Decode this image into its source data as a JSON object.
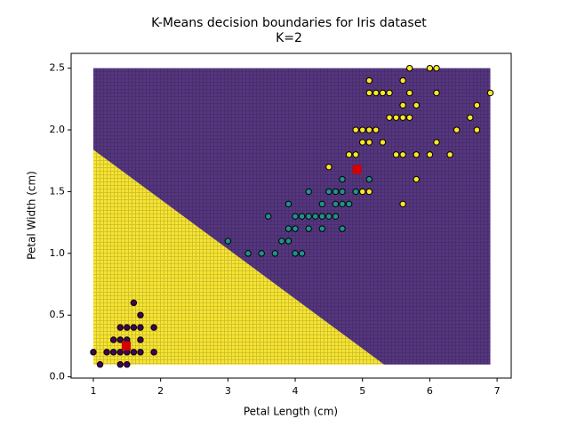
{
  "chart_data": {
    "type": "scatter",
    "title": "K-Means decision boundaries for Iris dataset",
    "subtitle": "K=2",
    "xlabel": "Petal Length (cm)",
    "ylabel": "Petal Width (cm)",
    "xlim": [
      0.67,
      7.21
    ],
    "ylim": [
      -0.01,
      2.62
    ],
    "xticks": [
      1,
      2,
      3,
      4,
      5,
      6,
      7
    ],
    "yticks": [
      {
        "value": 0,
        "label": "0.0"
      },
      0.5,
      {
        "value": 1,
        "label": "1.0"
      },
      1.5,
      {
        "value": 2,
        "label": "2.0"
      },
      2.5
    ],
    "regions": [
      {
        "color": "#f7e433",
        "x": [
          1,
          1,
          5.32
        ],
        "y": [
          0.1,
          1.84,
          0.1
        ]
      },
      {
        "color": "#55367f",
        "x": [
          1,
          5.32,
          6.9,
          6.9,
          1
        ],
        "y": [
          1.84,
          0.1,
          0.1,
          2.5,
          2.5
        ]
      }
    ],
    "series": [
      {
        "color": "#440154",
        "x": [
          1.0,
          1.1,
          1.2,
          1.3,
          1.3,
          1.4,
          1.4,
          1.4,
          1.4,
          1.5,
          1.5,
          1.5,
          1.5,
          1.6,
          1.6,
          1.6,
          1.7,
          1.7,
          1.7,
          1.7,
          1.9,
          1.9
        ],
        "y": [
          0.2,
          0.1,
          0.2,
          0.3,
          0.2,
          0.4,
          0.3,
          0.2,
          0.1,
          0.4,
          0.3,
          0.2,
          0.1,
          0.6,
          0.4,
          0.2,
          0.5,
          0.4,
          0.3,
          0.2,
          0.2,
          0.4
        ]
      },
      {
        "color": "#21918c",
        "x": [
          3.0,
          3.3,
          3.5,
          3.6,
          3.7,
          3.8,
          3.9,
          3.9,
          3.9,
          4.0,
          4.0,
          4.0,
          4.1,
          4.1,
          4.2,
          4.2,
          4.2,
          4.3,
          4.4,
          4.4,
          4.4,
          4.5,
          4.5,
          4.6,
          4.6,
          4.6,
          4.7,
          4.7,
          4.7,
          4.7,
          4.8,
          4.9,
          5.1
        ],
        "y": [
          1.1,
          1.0,
          1.0,
          1.3,
          1.0,
          1.1,
          1.1,
          1.4,
          1.2,
          1.3,
          1.2,
          1.0,
          1.3,
          1.0,
          1.3,
          1.2,
          1.5,
          1.3,
          1.4,
          1.3,
          1.2,
          1.5,
          1.3,
          1.5,
          1.4,
          1.3,
          1.5,
          1.4,
          1.6,
          1.2,
          1.4,
          1.5,
          1.6
        ]
      },
      {
        "color": "#fde725",
        "x": [
          4.5,
          4.8,
          4.9,
          4.9,
          5.0,
          5.0,
          5.0,
          5.1,
          5.1,
          5.1,
          5.1,
          5.1,
          5.2,
          5.2,
          5.3,
          5.3,
          5.4,
          5.4,
          5.5,
          5.5,
          5.6,
          5.6,
          5.6,
          5.6,
          5.6,
          5.7,
          5.7,
          5.7,
          5.8,
          5.8,
          5.8,
          6.0,
          6.0,
          6.1,
          6.1,
          6.1,
          6.3,
          6.4,
          6.6,
          6.7,
          6.7,
          6.9
        ],
        "y": [
          1.7,
          1.8,
          1.8,
          2.0,
          1.5,
          2.0,
          1.9,
          1.5,
          1.9,
          2.0,
          2.3,
          2.4,
          2.0,
          2.3,
          1.9,
          2.3,
          2.3,
          2.1,
          2.1,
          1.8,
          1.8,
          2.1,
          2.2,
          2.4,
          1.4,
          2.1,
          2.3,
          2.5,
          1.8,
          2.2,
          1.6,
          1.8,
          2.5,
          1.9,
          2.3,
          2.5,
          1.8,
          2.0,
          2.1,
          2.0,
          2.2,
          2.3
        ]
      }
    ],
    "centroids": {
      "color": "#d40000",
      "x": [
        1.49,
        4.92
      ],
      "y": [
        0.25,
        1.68
      ]
    }
  }
}
